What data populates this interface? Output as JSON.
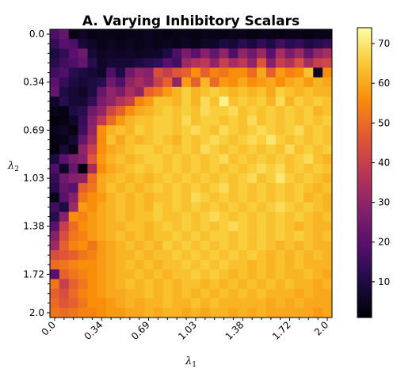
{
  "chart_data": {
    "type": "heatmap",
    "title": "A. Varying Inhibitory Scalars",
    "xlabel": "λ",
    "xlabel_sub": "1",
    "ylabel": "λ",
    "ylabel_sub": "2",
    "x_tick_labels": [
      "0.0",
      "0.34",
      "0.69",
      "1.03",
      "1.38",
      "1.72",
      "2.0"
    ],
    "y_tick_labels": [
      "0.0",
      "0.34",
      "0.69",
      "1.03",
      "1.38",
      "1.72",
      "2.0"
    ],
    "x_range": [
      0.0,
      2.0
    ],
    "y_range": [
      0.0,
      2.0
    ],
    "y_axis_inverted": true,
    "grid_size": 30,
    "colormap": "inferno",
    "colorbar": {
      "min": 1,
      "max": 74,
      "ticks": [
        "10",
        "20",
        "30",
        "40",
        "50",
        "60",
        "70"
      ],
      "tick_values": [
        10,
        20,
        30,
        40,
        50,
        60,
        70
      ]
    },
    "values": [
      [
        18,
        22,
        4,
        6,
        3,
        4,
        4,
        3,
        4,
        4,
        5,
        4,
        3,
        4,
        4,
        3,
        4,
        4,
        3,
        4,
        4,
        3,
        4,
        4,
        3,
        4,
        4,
        3,
        4,
        4
      ],
      [
        14,
        20,
        18,
        8,
        6,
        4,
        5,
        4,
        5,
        4,
        5,
        4,
        5,
        4,
        5,
        4,
        6,
        6,
        10,
        8,
        12,
        9,
        14,
        10,
        16,
        12,
        14,
        10,
        12,
        14
      ],
      [
        10,
        14,
        20,
        24,
        8,
        5,
        6,
        5,
        6,
        5,
        6,
        6,
        10,
        18,
        26,
        20,
        28,
        22,
        30,
        18,
        30,
        24,
        32,
        20,
        34,
        26,
        32,
        22,
        30,
        34
      ],
      [
        12,
        16,
        18,
        22,
        12,
        6,
        8,
        8,
        8,
        10,
        12,
        14,
        20,
        16,
        32,
        36,
        38,
        30,
        40,
        34,
        38,
        30,
        46,
        28,
        40,
        36,
        44,
        34,
        40,
        42
      ],
      [
        16,
        18,
        12,
        10,
        8,
        6,
        18,
        10,
        24,
        30,
        28,
        44,
        40,
        46,
        48,
        56,
        48,
        54,
        52,
        56,
        56,
        50,
        60,
        48,
        58,
        54,
        56,
        64,
        6,
        56
      ],
      [
        20,
        14,
        10,
        8,
        10,
        12,
        24,
        18,
        30,
        34,
        30,
        40,
        48,
        30,
        58,
        48,
        62,
        50,
        58,
        56,
        60,
        56,
        58,
        60,
        56,
        60,
        62,
        58,
        62,
        60
      ],
      [
        22,
        10,
        8,
        6,
        10,
        22,
        30,
        26,
        34,
        30,
        48,
        52,
        58,
        62,
        66,
        62,
        64,
        66,
        64,
        62,
        64,
        62,
        64,
        60,
        66,
        64,
        62,
        64,
        62,
        62
      ],
      [
        6,
        12,
        8,
        8,
        14,
        26,
        30,
        36,
        40,
        54,
        58,
        64,
        64,
        62,
        66,
        62,
        68,
        64,
        72,
        64,
        66,
        64,
        66,
        62,
        68,
        62,
        66,
        64,
        66,
        64
      ],
      [
        4,
        3,
        10,
        12,
        24,
        30,
        42,
        48,
        56,
        60,
        62,
        64,
        66,
        64,
        66,
        64,
        68,
        66,
        66,
        68,
        64,
        66,
        64,
        66,
        64,
        66,
        64,
        66,
        62,
        64
      ],
      [
        2,
        3,
        6,
        14,
        28,
        38,
        50,
        58,
        62,
        64,
        64,
        66,
        66,
        64,
        68,
        64,
        66,
        66,
        64,
        66,
        64,
        68,
        64,
        66,
        64,
        66,
        64,
        66,
        64,
        66
      ],
      [
        4,
        6,
        3,
        16,
        30,
        56,
        62,
        64,
        62,
        66,
        64,
        66,
        66,
        64,
        66,
        68,
        66,
        64,
        68,
        66,
        64,
        66,
        68,
        66,
        64,
        66,
        68,
        64,
        66,
        64
      ],
      [
        3,
        4,
        8,
        22,
        34,
        56,
        64,
        60,
        64,
        62,
        64,
        66,
        64,
        62,
        66,
        64,
        66,
        68,
        66,
        64,
        66,
        68,
        66,
        70,
        66,
        64,
        66,
        64,
        66,
        64
      ],
      [
        2,
        8,
        4,
        30,
        40,
        56,
        60,
        62,
        64,
        66,
        66,
        64,
        66,
        64,
        66,
        64,
        68,
        66,
        64,
        66,
        64,
        66,
        64,
        66,
        64,
        68,
        64,
        66,
        64,
        66
      ],
      [
        10,
        20,
        26,
        28,
        46,
        58,
        62,
        64,
        62,
        64,
        66,
        66,
        64,
        66,
        64,
        66,
        64,
        66,
        68,
        64,
        66,
        64,
        66,
        64,
        66,
        64,
        66,
        68,
        64,
        62
      ],
      [
        18,
        6,
        22,
        2,
        34,
        56,
        60,
        62,
        64,
        66,
        64,
        66,
        64,
        66,
        64,
        66,
        64,
        66,
        64,
        66,
        64,
        66,
        68,
        66,
        68,
        64,
        66,
        64,
        66,
        64
      ],
      [
        14,
        24,
        28,
        30,
        50,
        60,
        62,
        64,
        62,
        64,
        62,
        64,
        66,
        64,
        66,
        64,
        66,
        64,
        66,
        64,
        66,
        68,
        64,
        66,
        70,
        66,
        64,
        66,
        64,
        62
      ],
      [
        12,
        22,
        20,
        48,
        52,
        60,
        64,
        62,
        64,
        62,
        64,
        66,
        64,
        66,
        64,
        66,
        64,
        66,
        68,
        64,
        66,
        64,
        66,
        64,
        66,
        64,
        66,
        64,
        62,
        64
      ],
      [
        4,
        20,
        28,
        52,
        56,
        58,
        62,
        64,
        62,
        64,
        62,
        64,
        64,
        66,
        64,
        68,
        66,
        64,
        66,
        64,
        66,
        64,
        66,
        64,
        66,
        64,
        66,
        62,
        64,
        62
      ],
      [
        16,
        10,
        32,
        58,
        56,
        60,
        62,
        64,
        62,
        64,
        62,
        66,
        64,
        66,
        64,
        66,
        64,
        66,
        64,
        66,
        64,
        66,
        64,
        66,
        68,
        66,
        64,
        66,
        64,
        62
      ],
      [
        12,
        28,
        56,
        54,
        58,
        60,
        62,
        64,
        62,
        64,
        64,
        66,
        64,
        64,
        66,
        64,
        66,
        68,
        66,
        64,
        66,
        64,
        66,
        64,
        66,
        64,
        66,
        64,
        62,
        64
      ],
      [
        20,
        40,
        50,
        56,
        58,
        60,
        62,
        62,
        64,
        64,
        62,
        64,
        66,
        64,
        66,
        64,
        66,
        64,
        66,
        68,
        66,
        64,
        66,
        64,
        66,
        64,
        62,
        64,
        62,
        62
      ],
      [
        28,
        44,
        52,
        54,
        58,
        60,
        62,
        64,
        62,
        64,
        62,
        64,
        64,
        66,
        64,
        66,
        64,
        66,
        66,
        64,
        66,
        64,
        66,
        64,
        66,
        64,
        66,
        64,
        62,
        64
      ],
      [
        32,
        48,
        54,
        56,
        52,
        58,
        60,
        62,
        64,
        62,
        64,
        62,
        66,
        64,
        66,
        64,
        66,
        64,
        66,
        64,
        66,
        64,
        66,
        64,
        62,
        64,
        62,
        64,
        62,
        62
      ],
      [
        44,
        46,
        48,
        52,
        54,
        58,
        60,
        62,
        62,
        64,
        62,
        64,
        64,
        66,
        64,
        66,
        64,
        66,
        64,
        66,
        64,
        66,
        64,
        62,
        64,
        62,
        64,
        62,
        64,
        62
      ],
      [
        50,
        52,
        54,
        56,
        56,
        58,
        60,
        62,
        64,
        62,
        64,
        62,
        64,
        64,
        66,
        64,
        66,
        64,
        66,
        64,
        64,
        62,
        64,
        62,
        64,
        62,
        64,
        62,
        62,
        62
      ],
      [
        20,
        48,
        52,
        54,
        56,
        58,
        60,
        62,
        62,
        64,
        62,
        64,
        62,
        64,
        64,
        66,
        64,
        66,
        64,
        62,
        64,
        62,
        64,
        62,
        64,
        62,
        62,
        64,
        62,
        60
      ],
      [
        52,
        40,
        48,
        52,
        56,
        58,
        60,
        62,
        64,
        62,
        64,
        62,
        64,
        62,
        64,
        64,
        62,
        64,
        62,
        64,
        62,
        64,
        62,
        64,
        62,
        64,
        62,
        62,
        60,
        62
      ],
      [
        48,
        44,
        50,
        54,
        56,
        58,
        60,
        60,
        62,
        62,
        64,
        62,
        64,
        62,
        64,
        62,
        64,
        62,
        64,
        62,
        64,
        62,
        64,
        62,
        62,
        62,
        60,
        62,
        60,
        60
      ],
      [
        50,
        46,
        48,
        52,
        56,
        56,
        58,
        60,
        62,
        60,
        62,
        62,
        64,
        62,
        62,
        64,
        62,
        64,
        62,
        62,
        62,
        62,
        62,
        60,
        62,
        60,
        62,
        60,
        60,
        60
      ],
      [
        52,
        50,
        52,
        54,
        54,
        56,
        58,
        58,
        60,
        60,
        62,
        60,
        62,
        62,
        60,
        62,
        60,
        62,
        62,
        60,
        62,
        60,
        62,
        60,
        60,
        60,
        60,
        60,
        58,
        60
      ]
    ]
  }
}
